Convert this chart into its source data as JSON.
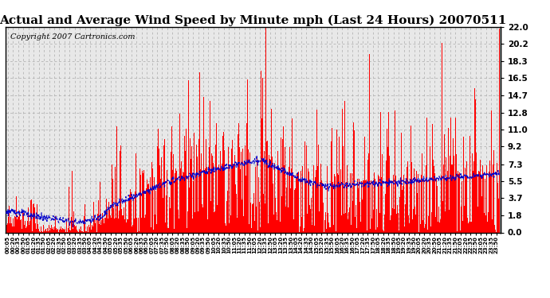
{
  "title": "Actual and Average Wind Speed by Minute mph (Last 24 Hours) 20070511",
  "copyright": "Copyright 2007 Cartronics.com",
  "yticks": [
    0.0,
    1.8,
    3.7,
    5.5,
    7.3,
    9.2,
    11.0,
    12.8,
    14.7,
    16.5,
    18.3,
    20.2,
    22.0
  ],
  "ylim": [
    0.0,
    22.0
  ],
  "bar_color": "#FF0000",
  "line_color": "#0000CC",
  "background_color": "#FFFFFF",
  "plot_bg_color": "#E8E8E8",
  "grid_color": "#AAAAAA",
  "title_fontsize": 11,
  "copyright_fontsize": 7,
  "num_minutes": 1440,
  "seed": 123
}
